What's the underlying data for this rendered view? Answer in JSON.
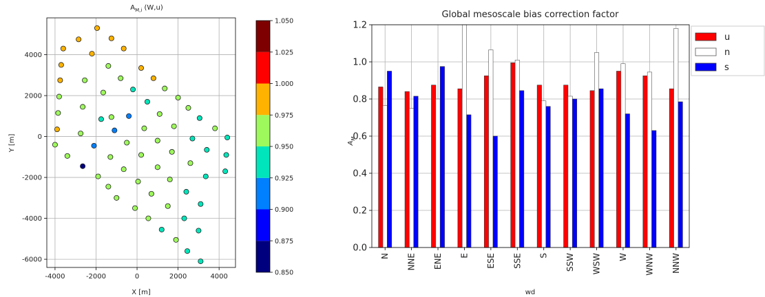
{
  "chart_data": [
    {
      "type": "scatter",
      "title": "A_M,i (W,u)",
      "title_main": "A",
      "title_sub": "M,i",
      "title_tail": " (W,u)",
      "xlabel": "X [m]",
      "ylabel": "Y [m]",
      "xlim": [
        -4400,
        4800
      ],
      "ylim": [
        -6400,
        5800
      ],
      "xticks": [
        "-4000",
        "-2000",
        "0",
        "2000",
        "4000"
      ],
      "xtick_values": [
        -4000,
        -2000,
        0,
        2000,
        4000
      ],
      "yticks": [
        "-6000",
        "-4000",
        "-2000",
        "0",
        "2000",
        "4000"
      ],
      "ytick_values": [
        -6000,
        -4000,
        -2000,
        0,
        2000,
        4000
      ],
      "grid": true,
      "colorbar": {
        "levels": [
          0.85,
          0.875,
          0.9,
          0.925,
          0.95,
          0.975,
          1.0,
          1.025,
          1.05
        ],
        "tick_labels": [
          "0.850",
          "0.875",
          "0.900",
          "0.925",
          "0.950",
          "0.975",
          "1.000",
          "1.025",
          "1.050"
        ],
        "colors": [
          "#00007f",
          "#0000ff",
          "#007fff",
          "#00e5bb",
          "#9ef95c",
          "#ffb300",
          "#ff0000",
          "#7f0000"
        ]
      },
      "points": [
        {
          "x": -1950,
          "y": 5300,
          "v": 0.99
        },
        {
          "x": -2850,
          "y": 4750,
          "v": 0.985
        },
        {
          "x": -1250,
          "y": 4800,
          "v": 0.99
        },
        {
          "x": -3600,
          "y": 4300,
          "v": 0.985
        },
        {
          "x": -2200,
          "y": 4050,
          "v": 0.99
        },
        {
          "x": -650,
          "y": 4300,
          "v": 0.99
        },
        {
          "x": -3700,
          "y": 3500,
          "v": 0.985
        },
        {
          "x": -1400,
          "y": 3450,
          "v": 0.965
        },
        {
          "x": 200,
          "y": 3350,
          "v": 0.98
        },
        {
          "x": -3750,
          "y": 2750,
          "v": 0.985
        },
        {
          "x": -2550,
          "y": 2750,
          "v": 0.965
        },
        {
          "x": -800,
          "y": 2850,
          "v": 0.965
        },
        {
          "x": 800,
          "y": 2850,
          "v": 0.98
        },
        {
          "x": -3800,
          "y": 1950,
          "v": 0.965
        },
        {
          "x": -1650,
          "y": 2150,
          "v": 0.965
        },
        {
          "x": -200,
          "y": 2300,
          "v": 0.94
        },
        {
          "x": 1350,
          "y": 2350,
          "v": 0.965
        },
        {
          "x": -3850,
          "y": 1150,
          "v": 0.965
        },
        {
          "x": -2650,
          "y": 1450,
          "v": 0.965
        },
        {
          "x": 500,
          "y": 1700,
          "v": 0.94
        },
        {
          "x": 2000,
          "y": 1900,
          "v": 0.965
        },
        {
          "x": -1750,
          "y": 850,
          "v": 0.94
        },
        {
          "x": -1250,
          "y": 950,
          "v": 0.965
        },
        {
          "x": -400,
          "y": 1000,
          "v": 0.91
        },
        {
          "x": 1100,
          "y": 1100,
          "v": 0.965
        },
        {
          "x": 2500,
          "y": 1400,
          "v": 0.965
        },
        {
          "x": -3900,
          "y": 350,
          "v": 0.985
        },
        {
          "x": -2750,
          "y": 150,
          "v": 0.965
        },
        {
          "x": -1100,
          "y": 300,
          "v": 0.91
        },
        {
          "x": 350,
          "y": 400,
          "v": 0.965
        },
        {
          "x": 1800,
          "y": 500,
          "v": 0.965
        },
        {
          "x": 3050,
          "y": 900,
          "v": 0.94
        },
        {
          "x": -4000,
          "y": -400,
          "v": 0.965
        },
        {
          "x": -2100,
          "y": -450,
          "v": 0.91
        },
        {
          "x": -500,
          "y": -300,
          "v": 0.965
        },
        {
          "x": 1000,
          "y": -200,
          "v": 0.965
        },
        {
          "x": 2700,
          "y": -100,
          "v": 0.94
        },
        {
          "x": 3800,
          "y": 400,
          "v": 0.965
        },
        {
          "x": 4400,
          "y": -50,
          "v": 0.94
        },
        {
          "x": -3400,
          "y": -950,
          "v": 0.965
        },
        {
          "x": -1300,
          "y": -1000,
          "v": 0.965
        },
        {
          "x": 200,
          "y": -900,
          "v": 0.965
        },
        {
          "x": 1700,
          "y": -750,
          "v": 0.965
        },
        {
          "x": 3400,
          "y": -650,
          "v": 0.94
        },
        {
          "x": -2650,
          "y": -1450,
          "v": 0.865
        },
        {
          "x": -650,
          "y": -1600,
          "v": 0.965
        },
        {
          "x": 1000,
          "y": -1500,
          "v": 0.965
        },
        {
          "x": 2600,
          "y": -1300,
          "v": 0.965
        },
        {
          "x": 4350,
          "y": -900,
          "v": 0.94
        },
        {
          "x": -1900,
          "y": -1950,
          "v": 0.965
        },
        {
          "x": 50,
          "y": -2200,
          "v": 0.965
        },
        {
          "x": 1600,
          "y": -2100,
          "v": 0.965
        },
        {
          "x": 3350,
          "y": -1950,
          "v": 0.94
        },
        {
          "x": 4300,
          "y": -1700,
          "v": 0.94
        },
        {
          "x": -1400,
          "y": -2450,
          "v": 0.965
        },
        {
          "x": 700,
          "y": -2800,
          "v": 0.965
        },
        {
          "x": 2400,
          "y": -2700,
          "v": 0.94
        },
        {
          "x": -1000,
          "y": -3000,
          "v": 0.965
        },
        {
          "x": 1500,
          "y": -3400,
          "v": 0.965
        },
        {
          "x": 3100,
          "y": -3300,
          "v": 0.94
        },
        {
          "x": -100,
          "y": -3500,
          "v": 0.965
        },
        {
          "x": 2300,
          "y": -4000,
          "v": 0.94
        },
        {
          "x": 550,
          "y": -4000,
          "v": 0.965
        },
        {
          "x": 1200,
          "y": -4550,
          "v": 0.94
        },
        {
          "x": 3000,
          "y": -4600,
          "v": 0.94
        },
        {
          "x": 1900,
          "y": -5050,
          "v": 0.965
        },
        {
          "x": 2450,
          "y": -5600,
          "v": 0.94
        },
        {
          "x": 3100,
          "y": -6100,
          "v": 0.94
        }
      ]
    },
    {
      "type": "bar",
      "title": "Global mesoscale bias correction factor",
      "xlabel": "wd",
      "ylabel": "A_M",
      "ylabel_main": "A",
      "ylabel_sub": "M",
      "ylim": [
        0,
        1.2
      ],
      "yticks": [
        "0.0",
        "0.2",
        "0.4",
        "0.6",
        "0.8",
        "1.0",
        "1.2"
      ],
      "ytick_values": [
        0,
        0.2,
        0.4,
        0.6,
        0.8,
        1.0,
        1.2
      ],
      "grid": true,
      "legend_position": "outside-top-right",
      "categories": [
        "N",
        "NNE",
        "ENE",
        "E",
        "ESE",
        "SSE",
        "S",
        "SSW",
        "WSW",
        "W",
        "WNW",
        "NNW"
      ],
      "series": [
        {
          "name": "u",
          "color": "#ff0000",
          "edge": "#333333",
          "values": [
            0.865,
            0.84,
            0.875,
            0.855,
            0.925,
            0.995,
            0.875,
            0.875,
            0.845,
            0.95,
            0.925,
            0.855
          ]
        },
        {
          "name": "n",
          "color": "#ffffff",
          "edge": "#555555",
          "values": [
            0.765,
            0.75,
            0.8,
            1.2,
            1.065,
            1.01,
            0.79,
            0.815,
            1.05,
            0.99,
            0.945,
            1.18
          ]
        },
        {
          "name": "s",
          "color": "#0000ff",
          "edge": "#333333",
          "values": [
            0.95,
            0.815,
            0.975,
            0.715,
            0.6,
            0.845,
            0.76,
            0.8,
            0.855,
            0.72,
            0.63,
            0.785
          ]
        }
      ]
    }
  ]
}
